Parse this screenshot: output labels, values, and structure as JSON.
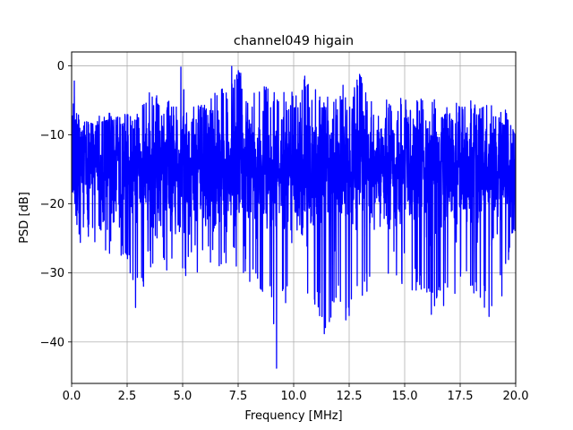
{
  "chart_data": {
    "type": "line",
    "title": "channel049 higain",
    "xlabel": "Frequency [MHz]",
    "ylabel": "PSD [dB]",
    "xlim": [
      0,
      20
    ],
    "ylim": [
      -46,
      2
    ],
    "xticks": [
      0,
      2.5,
      5,
      7.5,
      10,
      12.5,
      15,
      17.5,
      20
    ],
    "xtick_labels": [
      "0.0",
      "2.5",
      "5.0",
      "7.5",
      "10.0",
      "12.5",
      "15.0",
      "17.5",
      "20.0"
    ],
    "yticks": [
      0,
      -10,
      -20,
      -30,
      -40
    ],
    "ytick_labels": [
      "0",
      "−10",
      "−20",
      "−30",
      "−40"
    ],
    "grid": true,
    "legend": "none",
    "series": [
      {
        "color": "#0000ff",
        "envelope": {
          "x": [
            0.0,
            0.05,
            0.1,
            0.2,
            0.4,
            0.6,
            1.0,
            1.5,
            2.0,
            2.5,
            2.9,
            3.5,
            4.0,
            4.5,
            4.9,
            5.5,
            6.0,
            6.5,
            7.2,
            7.5,
            8.0,
            8.5,
            9.0,
            9.25,
            9.5,
            10.0,
            10.5,
            11.0,
            11.4,
            12.0,
            12.4,
            13.0,
            13.5,
            14.0,
            14.5,
            15.0,
            15.5,
            16.2,
            16.5,
            17.0,
            17.5,
            18.0,
            18.8,
            19.5,
            20.0
          ],
          "max": [
            -14,
            -2.5,
            -2.2,
            -2.8,
            -9,
            -7,
            -7.5,
            -7,
            -6.5,
            -6,
            -7,
            -3,
            -5,
            -5,
            -1.5,
            -3,
            -5.5,
            -3.5,
            -2,
            0,
            -4.5,
            -1,
            -3.5,
            -4,
            -2.5,
            -4,
            -1,
            -3.5,
            -5,
            -2.5,
            -3,
            -1,
            -4,
            -4,
            -6,
            -4,
            -5,
            -4,
            -6,
            -6,
            -5,
            -5,
            -5,
            -6,
            -9
          ],
          "min": [
            -19,
            -20,
            -19,
            -25,
            -26,
            -25,
            -26,
            -27,
            -28,
            -28,
            -35,
            -30,
            -29,
            -31,
            -32,
            -30,
            -30,
            -29,
            -29,
            -31,
            -32,
            -33,
            -34,
            -44,
            -36,
            -33,
            -34,
            -35,
            -39,
            -35,
            -37,
            -34,
            -34,
            -33,
            -33,
            -33,
            -33,
            -36,
            -34,
            -36,
            -32,
            -33,
            -36,
            -33,
            -24
          ]
        },
        "median": -15,
        "spread": 4.5
      }
    ]
  }
}
